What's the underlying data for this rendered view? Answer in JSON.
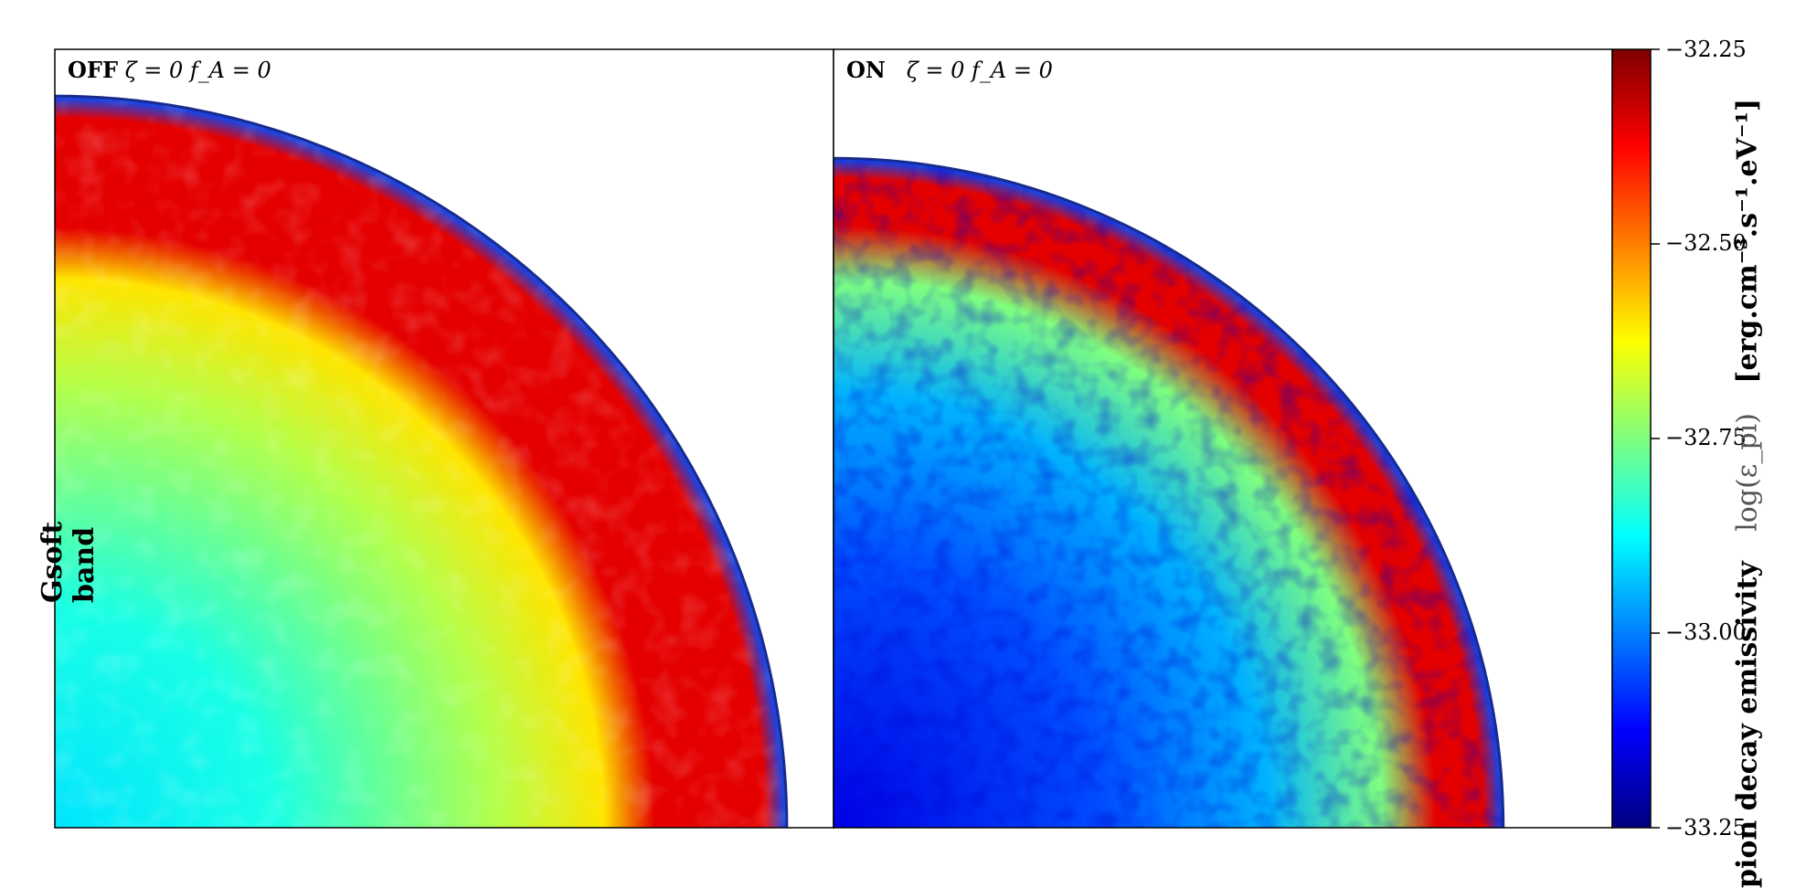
{
  "row_label": "Gsoft band",
  "panels": [
    {
      "flag": "OFF",
      "params": "ζ = 0  f_A = 0"
    },
    {
      "flag": "ON",
      "params": "ζ = 0  f_A = 0"
    }
  ],
  "colorbar": {
    "label_name": "pion decay emissivity",
    "label_quantity": "log(ε_pi)",
    "label_units": "[erg.cm⁻³.s⁻¹.eV⁻¹]",
    "ticks": [
      "−32.25",
      "−32.50",
      "−32.75",
      "−33.00",
      "−33.25"
    ],
    "colormap": "jet",
    "colors": [
      "#00007f",
      "#0000ff",
      "#007fff",
      "#00ffff",
      "#7fff7f",
      "#ffff00",
      "#ff7f00",
      "#ff0000",
      "#7f0000"
    ]
  },
  "chart_data": [
    {
      "type": "heatmap",
      "title": "OFF ζ = 0 f_A = 0",
      "value_range": [
        -33.25,
        -32.25
      ],
      "quadrant_radius_fraction": 0.94,
      "radial_profile": [
        {
          "r_fraction": 0.0,
          "value": -32.9
        },
        {
          "r_fraction": 0.3,
          "value": -32.85
        },
        {
          "r_fraction": 0.6,
          "value": -32.7
        },
        {
          "r_fraction": 0.75,
          "value": -32.6
        },
        {
          "r_fraction": 0.82,
          "value": -32.35
        },
        {
          "r_fraction": 0.97,
          "value": -32.35
        },
        {
          "r_fraction": 1.0,
          "value": -33.05
        }
      ]
    },
    {
      "type": "heatmap",
      "title": "ON ζ = 0 f_A = 0",
      "value_range": [
        -33.25,
        -32.25
      ],
      "quadrant_radius_fraction": 0.86,
      "radial_profile": [
        {
          "r_fraction": 0.0,
          "value": -33.15
        },
        {
          "r_fraction": 0.4,
          "value": -33.05
        },
        {
          "r_fraction": 0.65,
          "value": -32.95
        },
        {
          "r_fraction": 0.82,
          "value": -32.75
        },
        {
          "r_fraction": 0.9,
          "value": -32.35
        },
        {
          "r_fraction": 0.97,
          "value": -32.35
        },
        {
          "r_fraction": 1.0,
          "value": -33.05
        }
      ]
    }
  ]
}
